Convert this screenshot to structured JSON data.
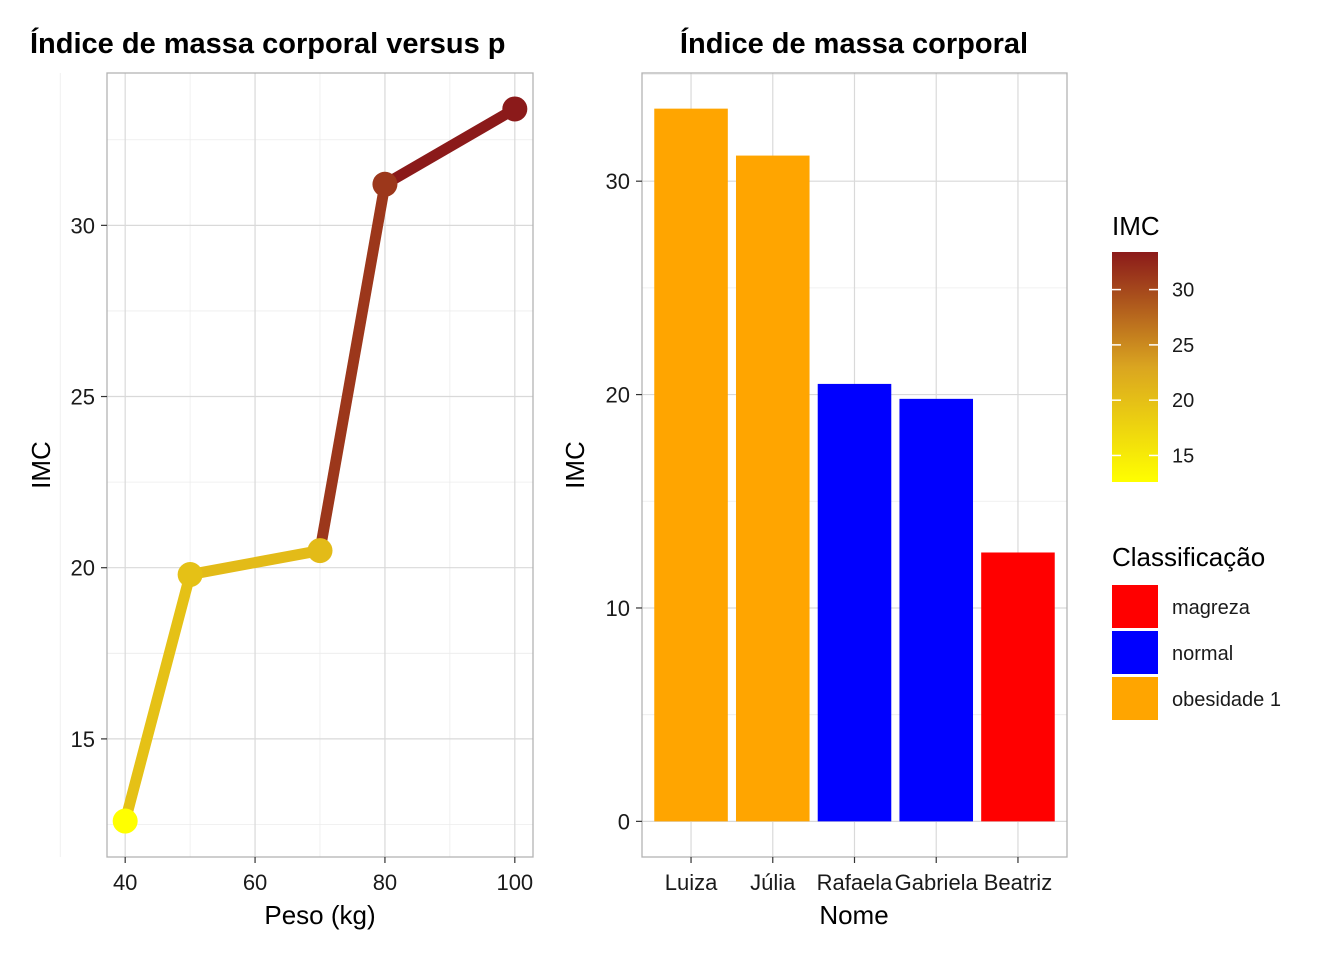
{
  "chart_data": [
    {
      "type": "line",
      "title": "Índice de massa corporal versus p",
      "xlabel": "Peso (kg)",
      "ylabel": "IMC",
      "x": [
        40,
        50,
        70,
        80,
        100
      ],
      "y": [
        12.6,
        19.8,
        20.5,
        31.2,
        33.4
      ],
      "xlim": [
        37.2,
        102.8
      ],
      "ylim": [
        11.55,
        34.45
      ],
      "xticks": [
        40,
        60,
        80,
        100
      ],
      "xtick_labels": [
        "40",
        "60",
        "80",
        "100"
      ],
      "yticks": [
        15,
        20,
        25,
        30
      ],
      "ytick_labels": [
        "15",
        "20",
        "25",
        "30"
      ],
      "grid": true,
      "color_scale": {
        "low": "#ffff00",
        "high": "#8b1a1a"
      }
    },
    {
      "type": "bar",
      "title": "Índice de massa corporal",
      "xlabel": "Nome",
      "ylabel": "IMC",
      "categories": [
        "Luiza",
        "Júlia",
        "Rafaela",
        "Gabriela",
        "Beatriz"
      ],
      "values": [
        33.4,
        31.2,
        20.5,
        19.8,
        12.6
      ],
      "classes": [
        "obesidade 1",
        "obesidade 1",
        "normal",
        "normal",
        "magreza"
      ],
      "ylim": [
        -1.67,
        35.07
      ],
      "yticks": [
        0,
        10,
        20,
        30
      ],
      "ytick_labels": [
        "0",
        "10",
        "20",
        "30"
      ],
      "grid": true
    }
  ],
  "legend": {
    "imc": {
      "title": "IMC",
      "ticks": [
        15,
        20,
        25,
        30
      ],
      "tick_labels": [
        "15",
        "20",
        "25",
        "30"
      ],
      "range": [
        12.6,
        33.4
      ],
      "colors": [
        "#ffff00",
        "#daa520",
        "#8b1a1a"
      ]
    },
    "classificacao": {
      "title": "Classificação",
      "items": [
        {
          "label": "magreza",
          "color": "#ff0000"
        },
        {
          "label": "normal",
          "color": "#0000ff"
        },
        {
          "label": "obesidade 1",
          "color": "#ffa500"
        }
      ]
    }
  }
}
